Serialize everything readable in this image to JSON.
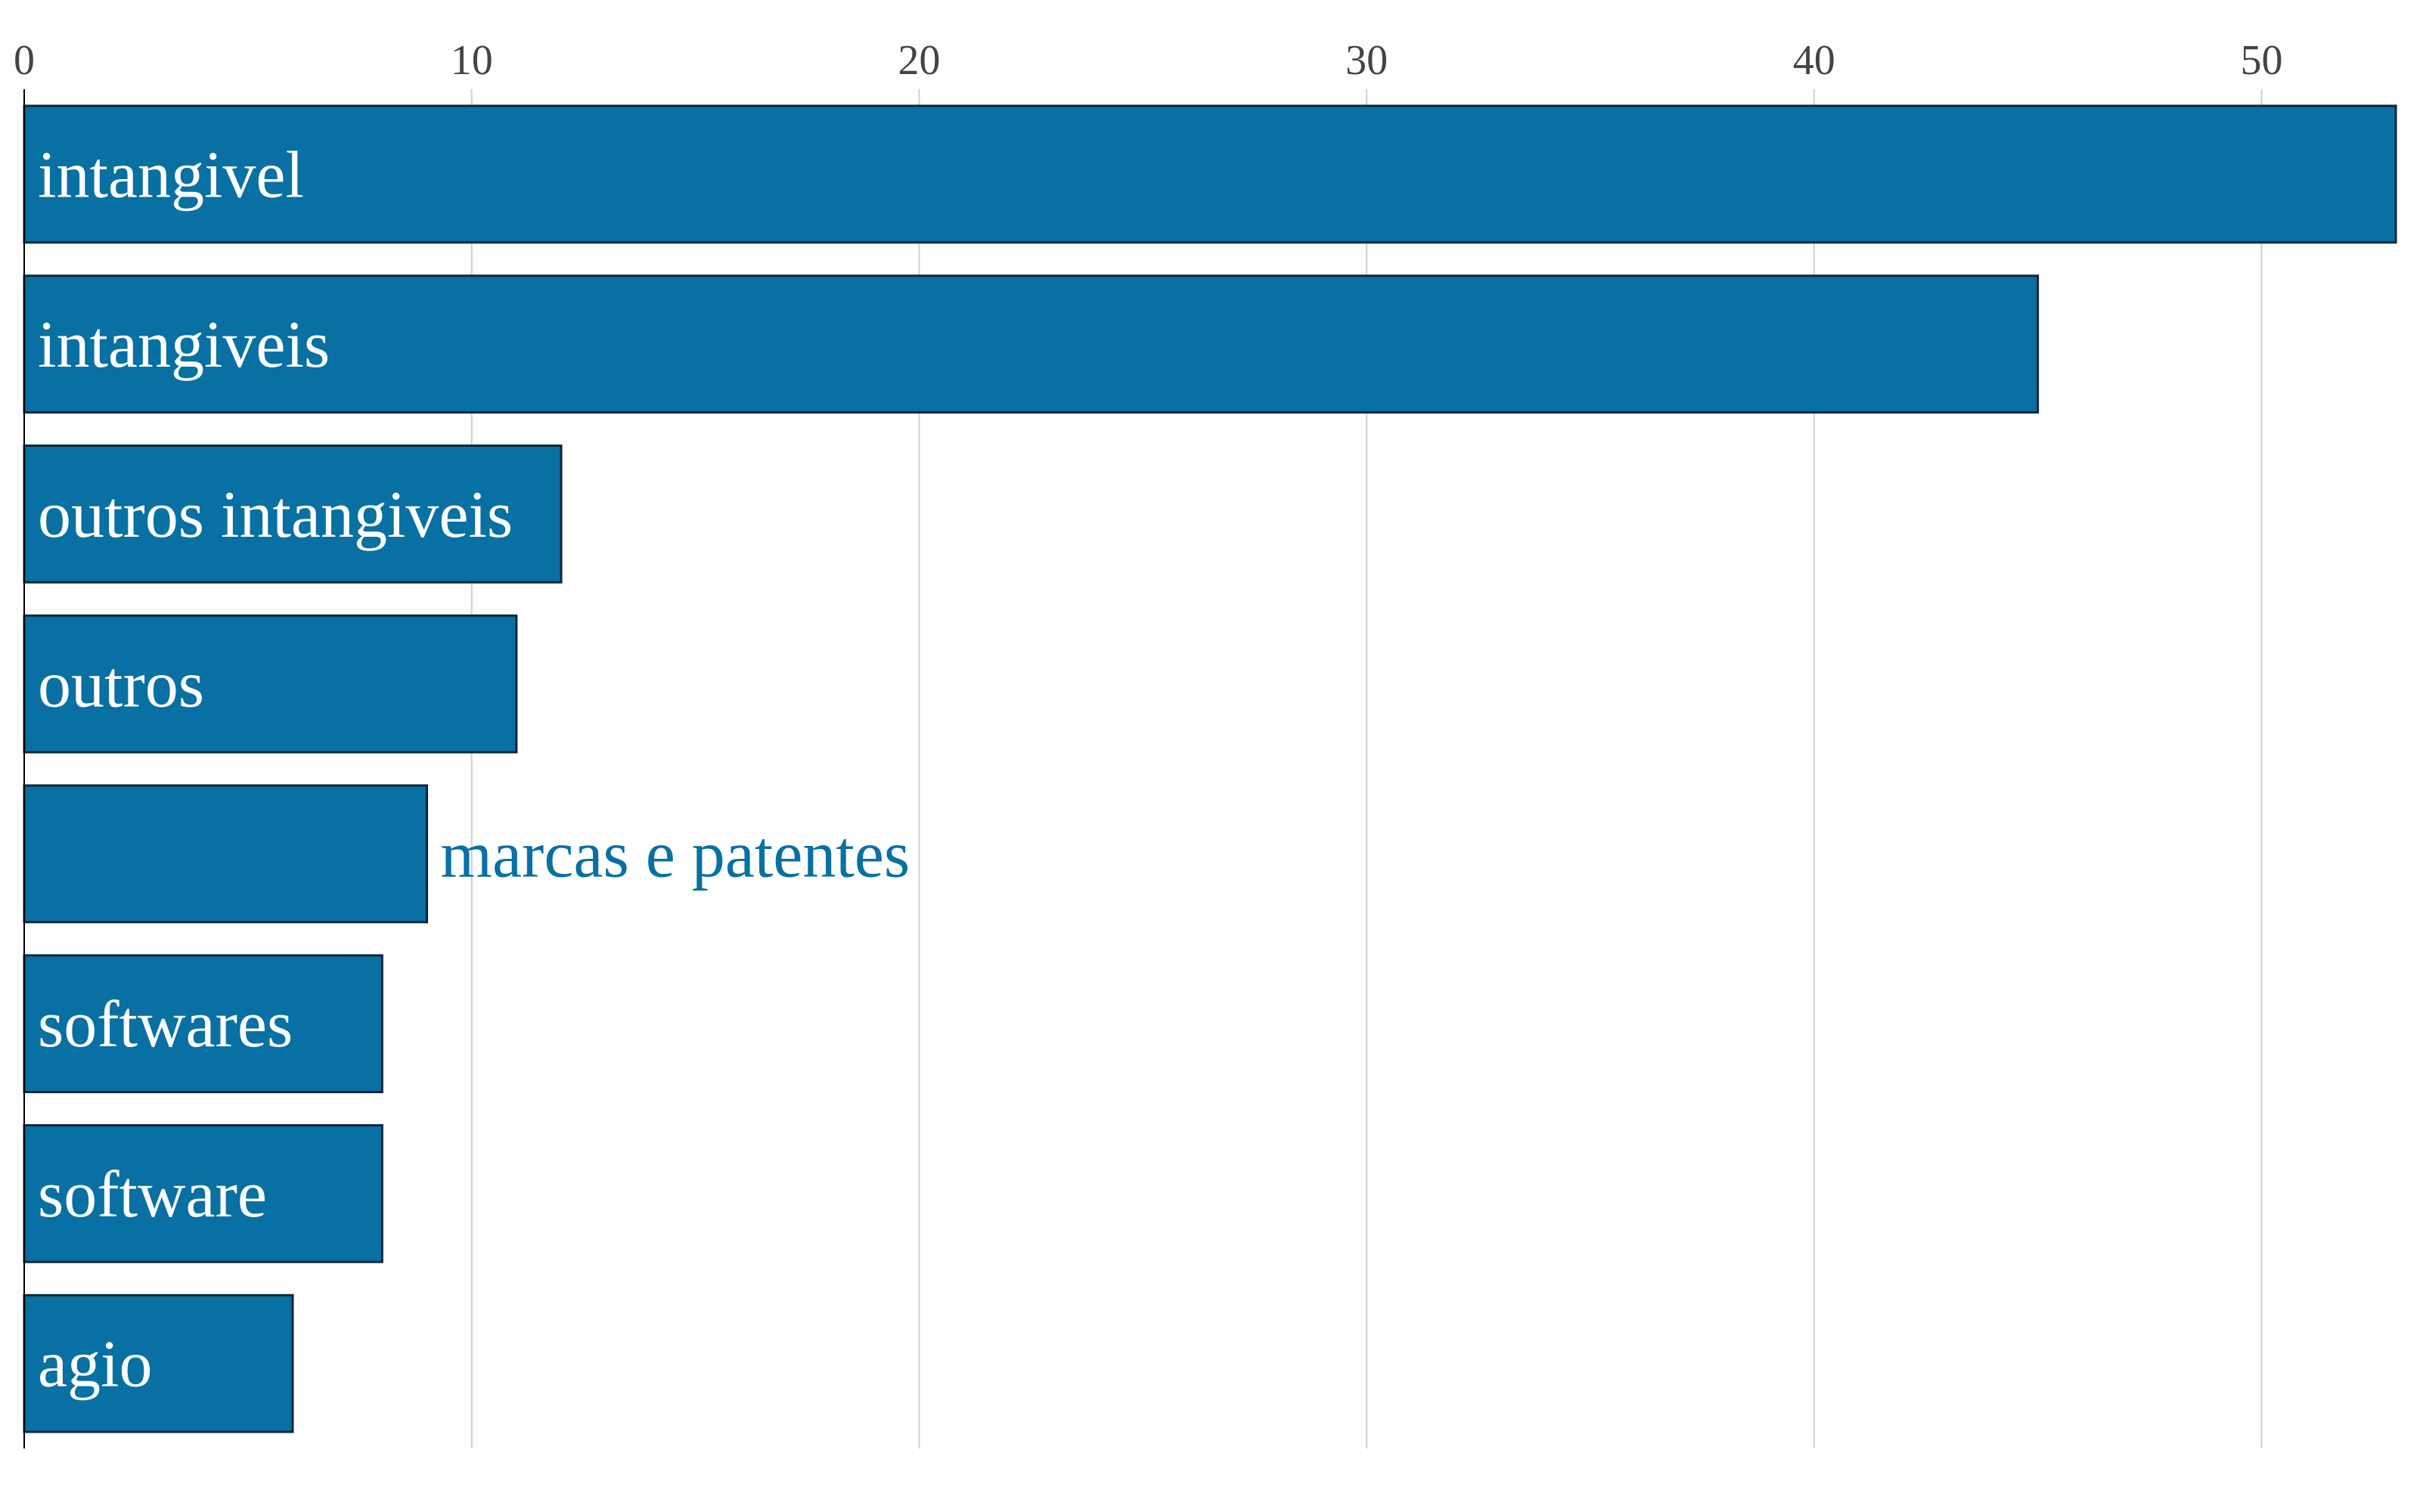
{
  "chart_data": {
    "type": "bar",
    "orientation": "horizontal",
    "categories": [
      "intangivel",
      "intangiveis",
      "outros intangiveis",
      "outros",
      "marcas e patentes",
      "softwares",
      "software",
      "agio"
    ],
    "values": [
      53,
      45,
      12,
      11,
      9,
      8,
      8,
      6
    ],
    "xlim": [
      0,
      53
    ],
    "xticks": [
      "0",
      "10",
      "20",
      "30",
      "40",
      "50"
    ],
    "xtick_values": [
      0,
      10,
      20,
      30,
      40,
      50
    ],
    "x_axis_position": "top",
    "title": "",
    "xlabel": "",
    "ylabel": "",
    "grid": true,
    "legend": "none",
    "colors": {
      "bar": "#0870a3",
      "bar_edge": "#10263a",
      "label_inside": "#ffffff",
      "label_outside": "#0870a3",
      "grid": "#c9d1d6",
      "tick_text": "#444444"
    }
  }
}
